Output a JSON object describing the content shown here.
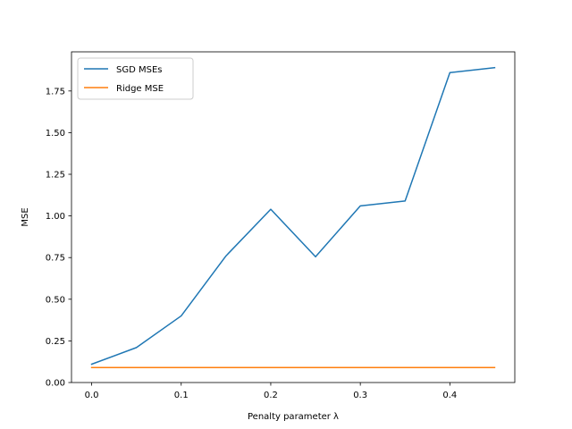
{
  "chart_data": {
    "type": "line",
    "title": "",
    "xlabel": "Penalty parameter λ",
    "ylabel": "MSE",
    "xlim": [
      -0.0225,
      0.4725
    ],
    "ylim": [
      0.0,
      1.985
    ],
    "xticks": [
      0.0,
      0.1,
      0.2,
      0.3,
      0.4
    ],
    "xtick_labels": [
      "0.0",
      "0.1",
      "0.2",
      "0.3",
      "0.4"
    ],
    "yticks": [
      0.0,
      0.25,
      0.5,
      0.75,
      1.0,
      1.25,
      1.5,
      1.75
    ],
    "ytick_labels": [
      "0.00",
      "0.25",
      "0.50",
      "0.75",
      "1.00",
      "1.25",
      "1.50",
      "1.75"
    ],
    "grid": false,
    "legend_position": "upper-left",
    "x": [
      0.0,
      0.05,
      0.1,
      0.15,
      0.2,
      0.25,
      0.3,
      0.35,
      0.4,
      0.45
    ],
    "series": [
      {
        "name": "SGD MSEs",
        "color": "#1f77b4",
        "values": [
          0.11,
          0.21,
          0.4,
          0.76,
          1.04,
          0.755,
          1.06,
          1.09,
          1.86,
          1.89
        ]
      },
      {
        "name": "Ridge MSE",
        "color": "#ff7f0e",
        "values": [
          0.09,
          0.09,
          0.09,
          0.09,
          0.09,
          0.09,
          0.09,
          0.09,
          0.09,
          0.09
        ]
      }
    ]
  }
}
